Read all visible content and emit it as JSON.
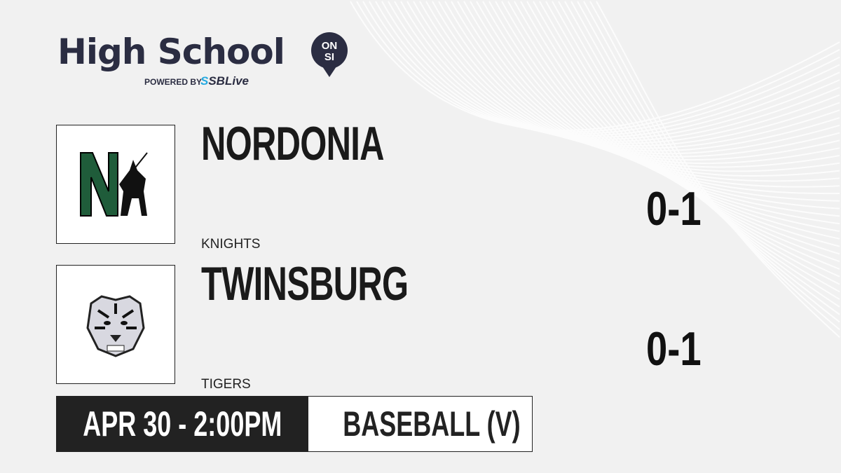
{
  "brand": {
    "title": "High School",
    "pin_top": "ON",
    "pin_bottom": "SI",
    "powered_by": "POWERED BY",
    "partner": "SBLive"
  },
  "teams": [
    {
      "name": "NORDONIA",
      "mascot": "KNIGHTS",
      "score": "0-1",
      "logo_color": "#1f5c3a",
      "logo_letter": "N"
    },
    {
      "name": "TWINSBURG",
      "mascot": "TIGERS",
      "score": "0-1"
    }
  ],
  "game": {
    "datetime": "APR 30 - 2:00PM",
    "sport": "BASEBALL (V)"
  },
  "colors": {
    "brand": "#2b2d42",
    "accent": "#25a9e0",
    "dark": "#222222"
  }
}
